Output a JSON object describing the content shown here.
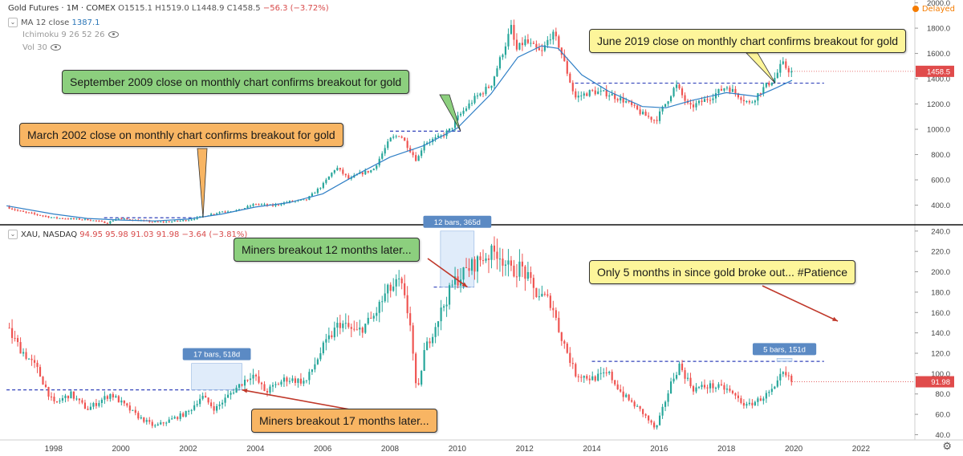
{
  "gold_legend": {
    "symbol": "Gold Futures · 1M · COMEX",
    "o": "O1515.1",
    "h": "H1519.0",
    "l": "L1448.9",
    "c": "C1458.5",
    "chg": "−56.3 (−3.72%)",
    "ma_label": "MA 12 close",
    "ma_value": "1387.1",
    "ichimoku": "Ichimoku 9 26 52 26",
    "vol": "Vol 30"
  },
  "xau_legend": {
    "symbol": "XAU, NASDAQ",
    "ohlc": "94.95 95.98 91.03 91.98",
    "chg": "−3.64 (−3.81%)"
  },
  "delayed_label": "Delayed",
  "annotations": {
    "march2002": "March 2002 close on monthly chart confirms breakout for gold",
    "sep2009": "September 2009 close on monthly chart confirms breakout for gold",
    "june2019": "June 2019 close on monthly chart confirms breakout for gold",
    "miners12": "Miners breakout 12 months later...",
    "patience": "Only 5 months in since gold broke out... #Patience",
    "miners17": "Miners breakout 17 months later..."
  },
  "colors": {
    "up": "#26a69a",
    "down": "#ef5350",
    "ma": "#2f7fc6",
    "dashed": "#3344bb",
    "last_price": "#e04b4b",
    "measure_box": "#cfe2f8",
    "measure_label": "#5b8ac4",
    "ann_orange": "#f8b563",
    "ann_green": "#8ccf7e",
    "ann_yellow": "#fdf59a",
    "arrow": "#c0392b"
  },
  "chart_data": [
    {
      "type": "candlestick",
      "title": "Gold Futures · 1M · COMEX",
      "interval": "1M",
      "y_ticks": [
        400,
        600,
        800,
        1000,
        1200,
        1400,
        1600,
        1800,
        2000
      ],
      "ylim": [
        270,
        2010
      ],
      "last_price_label": "1458.5",
      "ma_label": "MA 12 close",
      "ma_current": 1387.1,
      "breakout_levels": [
        {
          "name": "2002 breakout",
          "value": 300,
          "from": 1999.5,
          "to": 2002.2
        },
        {
          "name": "2009 breakout",
          "value": 985,
          "from": 2008.0,
          "to": 2010.1
        },
        {
          "name": "2019 breakout",
          "value": 1365,
          "from": 2013.5,
          "to": 2020.9
        }
      ],
      "price_path": [
        [
          1996.6,
          388
        ],
        [
          1997.0,
          350
        ],
        [
          1997.5,
          325
        ],
        [
          1998.0,
          300
        ],
        [
          1998.5,
          292
        ],
        [
          1999.0,
          286
        ],
        [
          1999.6,
          260
        ],
        [
          1999.9,
          295
        ],
        [
          2000.5,
          280
        ],
        [
          2001.0,
          266
        ],
        [
          2001.5,
          270
        ],
        [
          2002.0,
          282
        ],
        [
          2002.4,
          310
        ],
        [
          2003.0,
          350
        ],
        [
          2003.5,
          360
        ],
        [
          2004.0,
          410
        ],
        [
          2004.5,
          395
        ],
        [
          2005.0,
          428
        ],
        [
          2005.5,
          440
        ],
        [
          2006.0,
          560
        ],
        [
          2006.4,
          700
        ],
        [
          2006.8,
          600
        ],
        [
          2007.0,
          640
        ],
        [
          2007.5,
          680
        ],
        [
          2008.0,
          920
        ],
        [
          2008.3,
          960
        ],
        [
          2008.8,
          750
        ],
        [
          2009.0,
          890
        ],
        [
          2009.5,
          940
        ],
        [
          2009.8,
          1000
        ],
        [
          2010.0,
          1090
        ],
        [
          2010.5,
          1240
        ],
        [
          2011.0,
          1350
        ],
        [
          2011.6,
          1800
        ],
        [
          2011.75,
          1620
        ],
        [
          2012.0,
          1700
        ],
        [
          2012.5,
          1600
        ],
        [
          2012.8,
          1760
        ],
        [
          2013.0,
          1680
        ],
        [
          2013.5,
          1250
        ],
        [
          2014.0,
          1300
        ],
        [
          2014.5,
          1280
        ],
        [
          2015.0,
          1220
        ],
        [
          2015.5,
          1120
        ],
        [
          2015.9,
          1070
        ],
        [
          2016.5,
          1350
        ],
        [
          2016.9,
          1170
        ],
        [
          2017.5,
          1250
        ],
        [
          2018.0,
          1340
        ],
        [
          2018.7,
          1200
        ],
        [
          2019.0,
          1300
        ],
        [
          2019.45,
          1410
        ],
        [
          2019.65,
          1520
        ],
        [
          2019.85,
          1470
        ],
        [
          2019.95,
          1458.5
        ]
      ],
      "ma12_path": [
        [
          1996.6,
          395
        ],
        [
          1998.0,
          330
        ],
        [
          1999.0,
          295
        ],
        [
          2000.0,
          282
        ],
        [
          2001.0,
          275
        ],
        [
          2002.0,
          290
        ],
        [
          2003.0,
          330
        ],
        [
          2004.0,
          385
        ],
        [
          2005.0,
          420
        ],
        [
          2006.0,
          490
        ],
        [
          2007.0,
          640
        ],
        [
          2008.0,
          780
        ],
        [
          2009.0,
          870
        ],
        [
          2010.0,
          1010
        ],
        [
          2011.0,
          1280
        ],
        [
          2011.8,
          1570
        ],
        [
          2012.5,
          1660
        ],
        [
          2013.0,
          1640
        ],
        [
          2013.7,
          1430
        ],
        [
          2014.5,
          1300
        ],
        [
          2015.5,
          1180
        ],
        [
          2016.2,
          1170
        ],
        [
          2017.0,
          1230
        ],
        [
          2018.0,
          1290
        ],
        [
          2018.9,
          1260
        ],
        [
          2019.5,
          1330
        ],
        [
          2019.95,
          1387
        ]
      ]
    },
    {
      "type": "candlestick",
      "title": "XAU, NASDAQ",
      "y_ticks": [
        40,
        60,
        80,
        100,
        120,
        140,
        160,
        180,
        200,
        220,
        240
      ],
      "ylim": [
        38,
        243
      ],
      "last_price_label": "91.98",
      "breakout_levels": [
        {
          "name": "2002 level",
          "value": 84,
          "from": 1996.6,
          "to": 2003.6
        },
        {
          "name": "2009 level",
          "value": 185,
          "from": 2009.3,
          "to": 2010.5
        },
        {
          "name": "2019 level",
          "value": 112,
          "from": 2014.0,
          "to": 2020.9
        }
      ],
      "measures": [
        {
          "label": "17 bars, 518d",
          "from": 2002.1,
          "to": 2003.6,
          "low": 84,
          "high": 110
        },
        {
          "label": "12 bars, 365d",
          "from": 2009.5,
          "to": 2010.5,
          "low": 185,
          "high": 240
        },
        {
          "label": "5 bars, 151d",
          "from": 2019.5,
          "to": 2019.95,
          "low": 112,
          "high": 115
        }
      ],
      "price_path": [
        [
          1996.6,
          145
        ],
        [
          1997.0,
          125
        ],
        [
          1997.5,
          105
        ],
        [
          1998.0,
          70
        ],
        [
          1998.5,
          80
        ],
        [
          1999.0,
          65
        ],
        [
          1999.7,
          80
        ],
        [
          2000.5,
          58
        ],
        [
          2001.0,
          48
        ],
        [
          2001.5,
          55
        ],
        [
          2002.0,
          62
        ],
        [
          2002.4,
          78
        ],
        [
          2002.8,
          65
        ],
        [
          2003.3,
          82
        ],
        [
          2003.9,
          100
        ],
        [
          2004.3,
          82
        ],
        [
          2004.9,
          95
        ],
        [
          2005.5,
          92
        ],
        [
          2006.0,
          125
        ],
        [
          2006.5,
          150
        ],
        [
          2007.0,
          140
        ],
        [
          2007.5,
          155
        ],
        [
          2007.9,
          180
        ],
        [
          2008.3,
          190
        ],
        [
          2008.6,
          150
        ],
        [
          2008.8,
          75
        ],
        [
          2009.0,
          120
        ],
        [
          2009.5,
          160
        ],
        [
          2009.9,
          190
        ],
        [
          2010.4,
          205
        ],
        [
          2010.8,
          215
        ],
        [
          2011.2,
          220
        ],
        [
          2011.6,
          200
        ],
        [
          2011.9,
          205
        ],
        [
          2012.3,
          180
        ],
        [
          2012.8,
          170
        ],
        [
          2013.0,
          145
        ],
        [
          2013.5,
          100
        ],
        [
          2014.0,
          95
        ],
        [
          2014.5,
          100
        ],
        [
          2014.9,
          80
        ],
        [
          2015.5,
          62
        ],
        [
          2015.9,
          45
        ],
        [
          2016.4,
          95
        ],
        [
          2016.6,
          108
        ],
        [
          2017.0,
          85
        ],
        [
          2017.5,
          88
        ],
        [
          2018.0,
          85
        ],
        [
          2018.6,
          68
        ],
        [
          2019.0,
          75
        ],
        [
          2019.45,
          85
        ],
        [
          2019.65,
          100
        ],
        [
          2019.85,
          95
        ],
        [
          2019.95,
          91.98
        ]
      ]
    }
  ],
  "x_axis": {
    "ticks": [
      "1998",
      "2000",
      "2002",
      "2004",
      "2006",
      "2008",
      "2010",
      "2012",
      "2014",
      "2016",
      "2018",
      "2020",
      "2022"
    ],
    "range": [
      1996.55,
      2023.6
    ]
  }
}
